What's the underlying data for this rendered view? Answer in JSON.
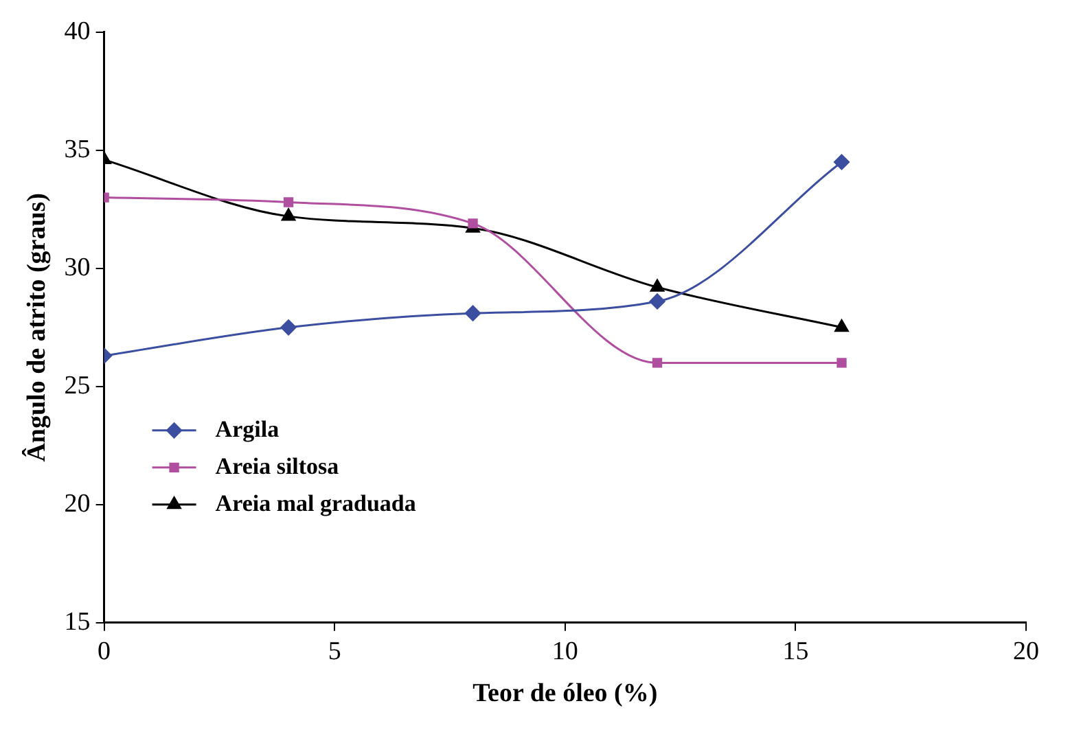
{
  "chart_data": {
    "type": "line",
    "xlabel": "Teor de óleo (%)",
    "ylabel": "Ângulo de atrito (graus)",
    "x": [
      0,
      4,
      8,
      12,
      16
    ],
    "series": [
      {
        "name": "Argila",
        "color": "#3c4ea0",
        "marker": "diamond",
        "values": [
          26.3,
          27.5,
          28.1,
          28.6,
          34.5
        ]
      },
      {
        "name": "Areia siltosa",
        "color": "#b04fa0",
        "marker": "square",
        "values": [
          33.0,
          32.8,
          31.9,
          26.0,
          26.0
        ]
      },
      {
        "name": "Areia mal graduada",
        "color": "#000000",
        "marker": "triangle",
        "values": [
          34.6,
          32.2,
          31.7,
          29.2,
          27.5
        ]
      }
    ],
    "xlim": [
      0,
      20
    ],
    "xticks": [
      0,
      5,
      10,
      15,
      20
    ],
    "ylim": [
      15,
      40
    ],
    "yticks": [
      15,
      20,
      25,
      30,
      35,
      40
    ],
    "grid": false,
    "legend": "bottom left"
  }
}
